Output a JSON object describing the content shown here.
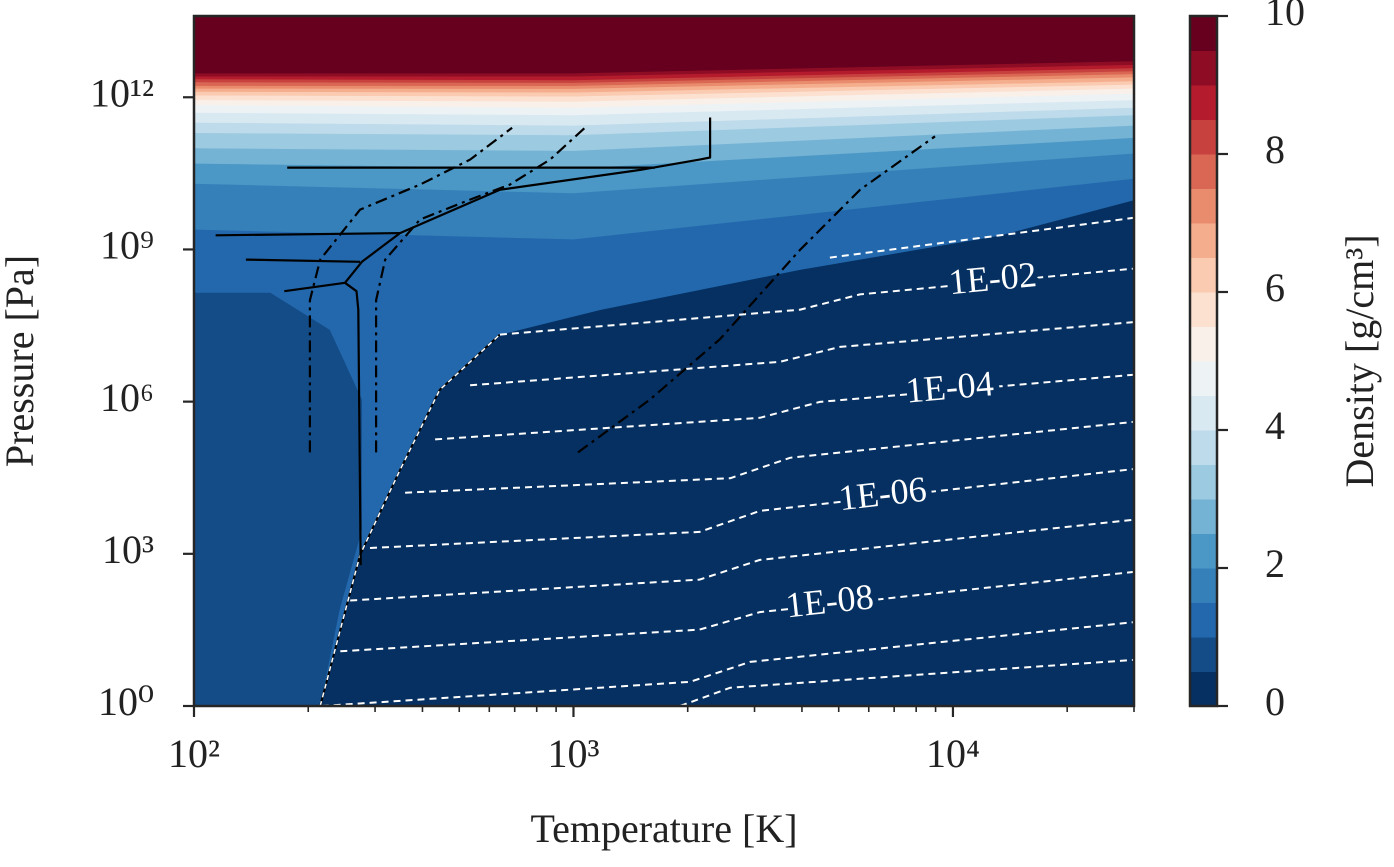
{
  "chart_data": {
    "type": "contourf",
    "xlabel": "Temperature [K]",
    "ylabel": "Pressure [Pa]",
    "xscale": "log",
    "yscale": "log",
    "xlim": [
      100,
      30000
    ],
    "ylim": [
      1,
      40000000000000.0
    ],
    "xticks": [
      {
        "value": 100,
        "label": "10²"
      },
      {
        "value": 1000,
        "label": "10³"
      },
      {
        "value": 10000,
        "label": "10⁴"
      }
    ],
    "xminor_ticks": [
      200,
      300,
      400,
      500,
      600,
      700,
      800,
      900,
      2000,
      3000,
      4000,
      5000,
      6000,
      7000,
      8000,
      9000,
      20000,
      30000
    ],
    "yticks": [
      {
        "value": 1,
        "label": "10⁰"
      },
      {
        "value": 1000,
        "label": "10³"
      },
      {
        "value": 1000000,
        "label": "10⁶"
      },
      {
        "value": 1000000000,
        "label": "10⁹"
      },
      {
        "value": 1000000000000,
        "label": "10¹²"
      }
    ],
    "colormap": [
      "#053061",
      "#2166ac",
      "#4393c3",
      "#92c5de",
      "#d1e5f0",
      "#f7f7f7",
      "#fddbc7",
      "#f4a582",
      "#d6604d",
      "#b2182b",
      "#67001f"
    ],
    "colorbar": {
      "label": "Density [g/cm³]",
      "lim": [
        0,
        10
      ],
      "ticks": [
        0,
        2,
        4,
        6,
        8,
        10
      ],
      "levels": [
        0,
        0.5,
        1,
        1.5,
        2,
        2.5,
        3,
        3.5,
        4,
        4.5,
        5,
        5.5,
        6,
        6.5,
        7,
        7.5,
        8,
        8.5,
        9,
        9.5,
        10
      ]
    },
    "filled_contours": [
      {
        "level": 1,
        "T": [
          215,
          274,
          349,
          444,
          640,
          1175,
          3950,
          13300,
          30000
        ],
        "P": [
          1,
          955,
          45000,
          1700000,
          21000000,
          65000000,
          400000000,
          1900000000,
          9500000000
        ]
      },
      {
        "level": 1.5,
        "T": [
          100,
          1000,
          30000
        ],
        "P": [
          2500000000.0,
          1600000000.0,
          25000000000.0
        ]
      },
      {
        "level": 2,
        "T": [
          100,
          1000,
          30000
        ],
        "P": [
          20000000000.0,
          13000000000.0,
          79000000000.0
        ]
      },
      {
        "level": 2.5,
        "T": [
          100,
          1000,
          30000
        ],
        "P": [
          50000000000.0,
          40000000000.0,
          160000000000.0
        ]
      },
      {
        "level": 3,
        "T": [
          100,
          1000,
          30000
        ],
        "P": [
          100000000000.0,
          89000000000.0,
          280000000000.0
        ]
      },
      {
        "level": 3.5,
        "T": [
          100,
          1000,
          30000
        ],
        "P": [
          200000000000.0,
          180000000000.0,
          450000000000.0
        ]
      },
      {
        "level": 4,
        "T": [
          100,
          1000,
          30000
        ],
        "P": [
          320000000000.0,
          280000000000.0,
          630000000000.0
        ]
      },
      {
        "level": 4.5,
        "T": [
          100,
          1000,
          30000
        ],
        "P": [
          500000000000.0,
          450000000000.0,
          890000000000.0
        ]
      },
      {
        "level": 5,
        "T": [
          100,
          1000,
          30000
        ],
        "P": [
          710000000000.0,
          630000000000.0,
          1200000000000.0
        ]
      },
      {
        "level": 5.5,
        "T": [
          100,
          1000,
          30000
        ],
        "P": [
          890000000000.0,
          830000000000.0,
          1500000000000.0
        ]
      },
      {
        "level": 6,
        "T": [
          100,
          1000,
          30000
        ],
        "P": [
          1100000000000.0,
          1050000000000.0,
          1800000000000.0
        ]
      },
      {
        "level": 6.5,
        "T": [
          100,
          1000,
          30000
        ],
        "P": [
          1300000000000.0,
          1260000000000.0,
          2100000000000.0
        ]
      },
      {
        "level": 7,
        "T": [
          100,
          1000,
          30000
        ],
        "P": [
          1500000000000.0,
          1480000000000.0,
          2500000000000.0
        ]
      },
      {
        "level": 7.5,
        "T": [
          100,
          1000,
          30000
        ],
        "P": [
          1700000000000.0,
          1700000000000.0,
          2900000000000.0
        ]
      },
      {
        "level": 8,
        "T": [
          100,
          1000,
          30000
        ],
        "P": [
          2000000000000.0,
          1950000000000.0,
          3300000000000.0
        ]
      },
      {
        "level": 8.5,
        "T": [
          100,
          1000,
          30000
        ],
        "P": [
          2300000000000.0,
          2200000000000.0,
          3800000000000.0
        ]
      },
      {
        "level": 9,
        "T": [
          100,
          1000,
          30000
        ],
        "P": [
          2600000000000.0,
          2600000000000.0,
          4400000000000.0
        ]
      },
      {
        "level": 9.5,
        "T": [
          100,
          1000,
          30000
        ],
        "P": [
          3000000000000.0,
          3000000000000.0,
          5200000000000.0
        ]
      }
    ],
    "regions": [
      {
        "level": 0.5,
        "T": [
          100,
          100,
          159,
          228,
          277,
          277,
          242,
          215
        ],
        "P": [
          1,
          140000000.0,
          140000000.0,
          26000000.0,
          1100000.0,
          2950,
          78,
          1
        ]
      }
    ],
    "saturation_curve": {
      "T": [
        215,
        274,
        349,
        444,
        640
      ],
      "P": [
        1,
        955,
        45000,
        1700000,
        21000000
      ]
    },
    "contour_line_color": "#ffffff",
    "line_contours": [
      {
        "level": 0.1,
        "T": [
          4740,
          30000
        ],
        "P": [
          690000000.0,
          4200000000.0
        ]
      },
      {
        "level": 0.01,
        "label": "1E-02",
        "T": [
          640,
          3950,
          5690,
          30000
        ],
        "P": [
          21000000.0,
          65000000.0,
          130000000.0,
          420000000.0
        ]
      },
      {
        "level": 0.001,
        "T": [
          534,
          3500,
          5040,
          30000
        ],
        "P": [
          2100000.0,
          6100000.0,
          12000000.0,
          37000000.0
        ]
      },
      {
        "level": 0.0001,
        "label": "1E-04",
        "T": [
          432,
          3100,
          4460,
          30000
        ],
        "P": [
          180000.0,
          480000.0,
          990000.0,
          3400000.0
        ]
      },
      {
        "level": 1e-05,
        "T": [
          360,
          2590,
          3720,
          30000
        ],
        "P": [
          16000,
          31000,
          78000,
          400000
        ]
      },
      {
        "level": 1e-06,
        "label": "1E-06",
        "T": [
          291,
          2150,
          3100,
          30000
        ],
        "P": [
          1300,
          2700,
          7000,
          47000
        ]
      },
      {
        "level": 1e-07,
        "T": [
          258,
          2150,
          3100,
          30000
        ],
        "P": [
          120,
          310,
          760,
          4700
        ]
      },
      {
        "level": 1e-08,
        "label": "1E-08",
        "T": [
          243,
          2150,
          3100,
          30000
        ],
        "P": [
          12,
          32,
          71,
          440
        ]
      },
      {
        "level": 1e-09,
        "T": [
          217,
          2030,
          2920,
          30000
        ],
        "P": [
          1,
          3,
          7.4,
          45
        ]
      },
      {
        "level": 1e-10,
        "T": [
          1910,
          2590,
          30000
        ],
        "P": [
          1,
          2.3,
          8.1
        ]
      }
    ],
    "boundary_color": "#000000",
    "phase_boundaries": [
      {
        "T": [
          176,
          1640
        ],
        "P": [
          41000000000.0,
          41000000000.0
        ]
      },
      {
        "T": [
          173,
          250,
          268,
          271,
          275
        ],
        "P": [
          150000000.0,
          220000000.0,
          150000000.0,
          65000000.0,
          600
        ]
      },
      {
        "T": [
          250,
          277,
          349,
          640,
          1497,
          2150,
          2291,
          2291
        ],
        "P": [
          220000000.0,
          570000000.0,
          2100000000.0,
          15000000000.0,
          37000000000.0,
          59000000000.0,
          65000000000.0,
          400000000000.0
        ]
      },
      {
        "T": [
          114,
          349
        ],
        "P": [
          1900000000.0,
          2100000000.0
        ]
      },
      {
        "T": [
          137,
          274
        ],
        "P": [
          630000000.0,
          570000000.0
        ]
      }
    ],
    "adiabats": [
      {
        "T": [
          202,
          202,
          215,
          274,
          394,
          534,
          689
        ],
        "P": [
          100000.0,
          100000000.0,
          630000000.0,
          6100000000.0,
          19000000000.0,
          59000000000.0,
          250000000000.0
        ]
      },
      {
        "T": [
          302,
          302,
          319,
          394,
          534,
          680,
          867,
          1072
        ],
        "P": [
          100000.0,
          100000000.0,
          630000000.0,
          3900000000.0,
          9600000000.0,
          19000000000.0,
          59000000000.0,
          250000000000.0
        ]
      },
      {
        "T": [
          1028,
          1591,
          2432,
          3954,
          5690,
          8969
        ],
        "P": [
          100000.0,
          1100000.0,
          17000000.0,
          980000000.0,
          15000000000.0,
          170000000000.0
        ]
      }
    ]
  }
}
